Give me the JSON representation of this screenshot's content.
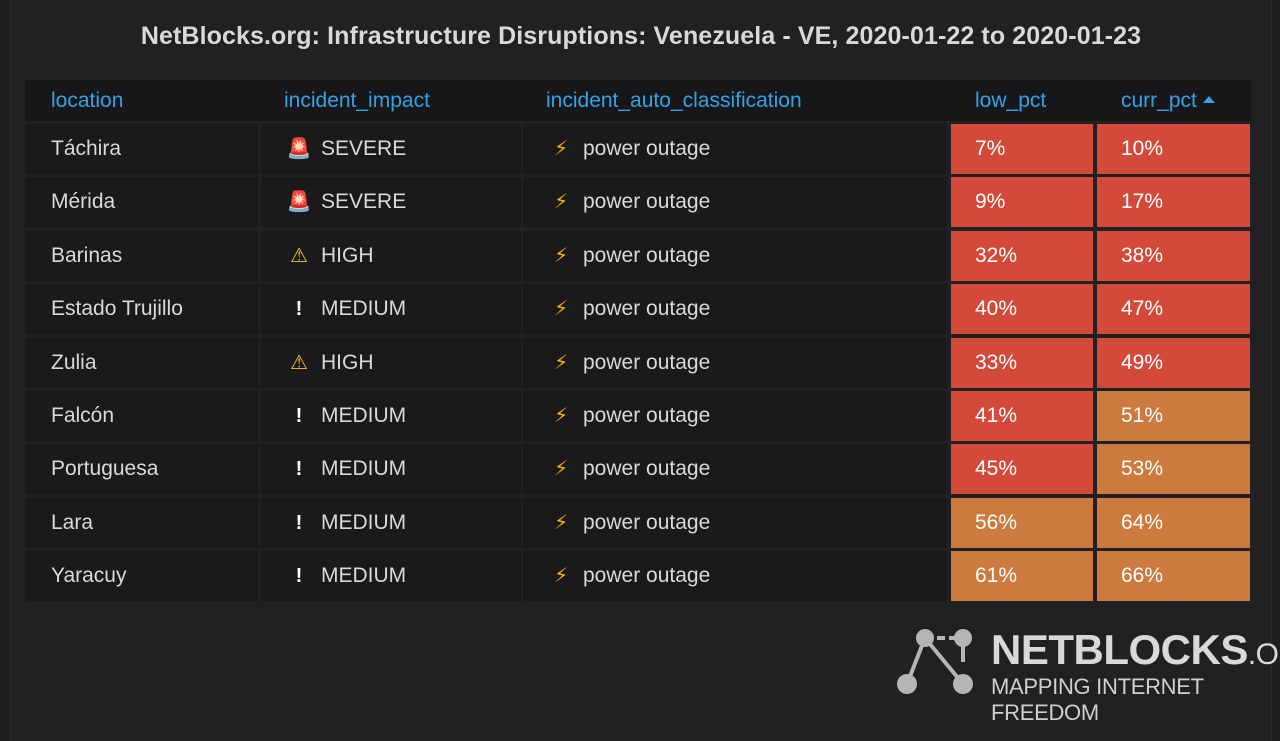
{
  "panel": {
    "title": "NetBlocks.org: Infrastructure Disruptions: Venezuela - VE, 2020-01-22 to 2020-01-23"
  },
  "table": {
    "columns": [
      "location",
      "incident_impact",
      "incident_auto_classification",
      "low_pct",
      "curr_pct"
    ],
    "sort": {
      "column": "curr_pct",
      "direction": "ascending"
    },
    "rows": [
      {
        "location": "Táchira",
        "impact": "SEVERE",
        "impact_icon": "siren-icon",
        "classification": "power outage",
        "class_icon": "lightning-icon",
        "low_pct": "7%",
        "curr_pct": "10%",
        "low_color": "#d44a3a",
        "curr_color": "#d44a3a"
      },
      {
        "location": "Mérida",
        "impact": "SEVERE",
        "impact_icon": "siren-icon",
        "classification": "power outage",
        "class_icon": "lightning-icon",
        "low_pct": "9%",
        "curr_pct": "17%",
        "low_color": "#d44a3a",
        "curr_color": "#d44a3a"
      },
      {
        "location": "Barinas",
        "impact": "HIGH",
        "impact_icon": "warning-icon",
        "classification": "power outage",
        "class_icon": "lightning-icon",
        "low_pct": "32%",
        "curr_pct": "38%",
        "low_color": "#d44a3a",
        "curr_color": "#d44a3a"
      },
      {
        "location": "Estado Trujillo",
        "impact": "MEDIUM",
        "impact_icon": "exclamation-icon",
        "classification": "power outage",
        "class_icon": "lightning-icon",
        "low_pct": "40%",
        "curr_pct": "47%",
        "low_color": "#d44a3a",
        "curr_color": "#d44a3a"
      },
      {
        "location": "Zulia",
        "impact": "HIGH",
        "impact_icon": "warning-icon",
        "classification": "power outage",
        "class_icon": "lightning-icon",
        "low_pct": "33%",
        "curr_pct": "49%",
        "low_color": "#d44a3a",
        "curr_color": "#d44a3a"
      },
      {
        "location": "Falcón",
        "impact": "MEDIUM",
        "impact_icon": "exclamation-icon",
        "classification": "power outage",
        "class_icon": "lightning-icon",
        "low_pct": "41%",
        "curr_pct": "51%",
        "low_color": "#d44a3a",
        "curr_color": "#cc7a3d"
      },
      {
        "location": "Portuguesa",
        "impact": "MEDIUM",
        "impact_icon": "exclamation-icon",
        "classification": "power outage",
        "class_icon": "lightning-icon",
        "low_pct": "45%",
        "curr_pct": "53%",
        "low_color": "#d44a3a",
        "curr_color": "#cc7a3d"
      },
      {
        "location": "Lara",
        "impact": "MEDIUM",
        "impact_icon": "exclamation-icon",
        "classification": "power outage",
        "class_icon": "lightning-icon",
        "low_pct": "56%",
        "curr_pct": "64%",
        "low_color": "#cc7a3d",
        "curr_color": "#cc7a3d"
      },
      {
        "location": "Yaracuy",
        "impact": "MEDIUM",
        "impact_icon": "exclamation-icon",
        "classification": "power outage",
        "class_icon": "lightning-icon",
        "low_pct": "61%",
        "curr_pct": "66%",
        "low_color": "#cc7a3d",
        "curr_color": "#cc7a3d"
      }
    ]
  },
  "logo": {
    "name": "NETBLOCKS",
    "suffix": ".ORG",
    "tagline": "MAPPING INTERNET FREEDOM",
    "icon": "network-nodes-icon"
  },
  "colors": {
    "header_text": "#33a2e5",
    "severe_cell": "#d44a3a",
    "warning_cell": "#cc7a3d"
  }
}
